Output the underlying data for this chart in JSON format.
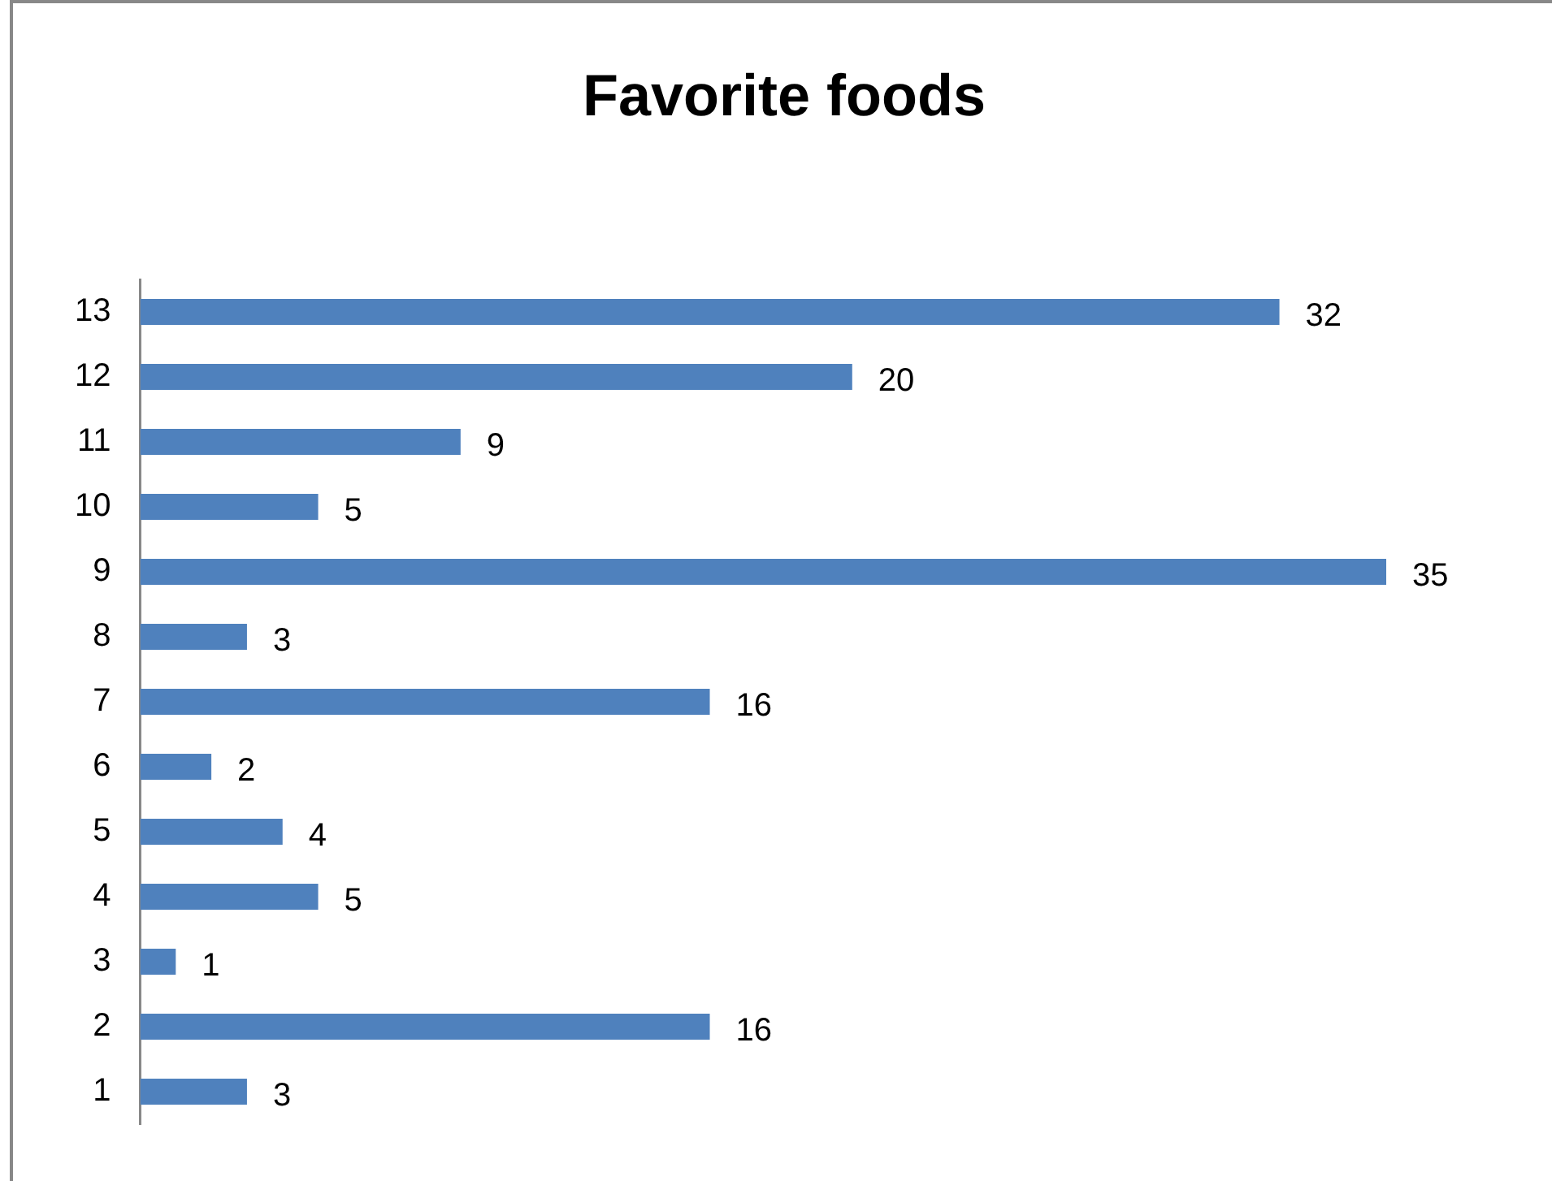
{
  "chart_data": {
    "type": "bar",
    "title": "Favorite foods",
    "orientation": "horizontal",
    "categories": [
      "13",
      "12",
      "11",
      "10",
      "9",
      "8",
      "7",
      "6",
      "5",
      "4",
      "3",
      "2",
      "1"
    ],
    "values": [
      32,
      20,
      9,
      5,
      35,
      3,
      16,
      2,
      4,
      5,
      1,
      16,
      3
    ],
    "color": "#4f81bd",
    "tick_labels": "y",
    "grid": false,
    "legend": false,
    "data_labels": true
  }
}
